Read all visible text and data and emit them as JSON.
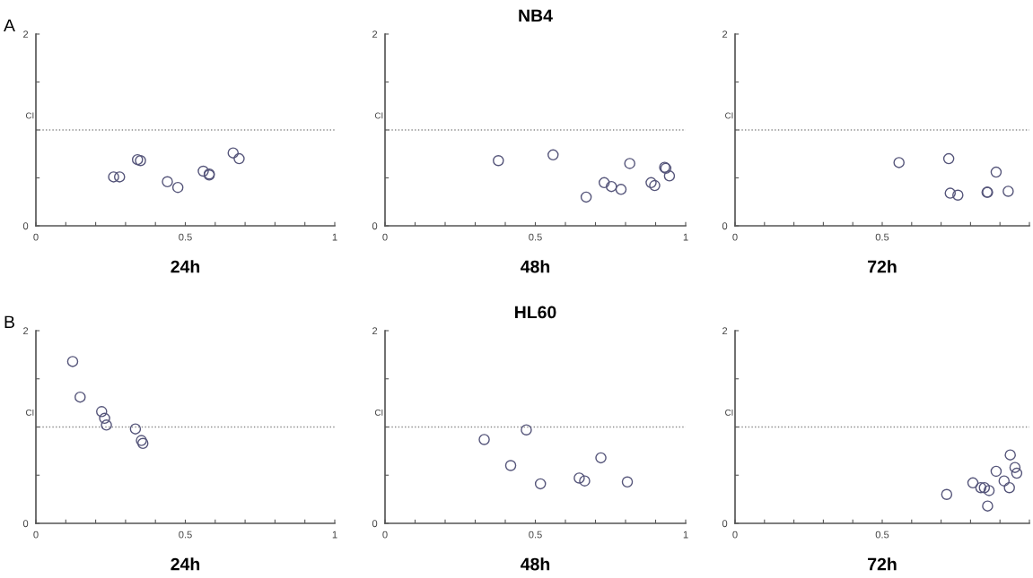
{
  "chart_data": [
    {
      "type": "scatter",
      "annotations": [
        "A"
      ],
      "xlabel": "24h",
      "ylabel": "CI",
      "xlim": [
        0,
        1
      ],
      "ylim": [
        0,
        2
      ],
      "marker": "circle",
      "grid": false,
      "xticks": [
        0,
        {
          "value": 0.1,
          "label": null
        },
        {
          "value": 0.2,
          "label": null
        },
        {
          "value": 0.3,
          "label": null
        },
        {
          "value": 0.4,
          "label": null
        },
        0.5,
        {
          "value": 0.6,
          "label": null
        },
        {
          "value": 0.7,
          "label": null
        },
        {
          "value": 0.8,
          "label": null
        },
        {
          "value": 0.9,
          "label": null
        },
        1
      ],
      "yticks": [
        0,
        {
          "value": 0.5,
          "label": null
        },
        {
          "value": 1,
          "label": null
        },
        {
          "value": 1.5,
          "label": null
        },
        2
      ],
      "ref_lines": [
        {
          "axis": "y",
          "value": 1,
          "color": "#8a8a8a",
          "line_style": "dotted"
        }
      ],
      "series": [
        {
          "color": "#55557a",
          "x": [
            0.26,
            0.28,
            0.34,
            0.35,
            0.44,
            0.475,
            0.56,
            0.58,
            0.58,
            0.66,
            0.68
          ],
          "values": [
            0.51,
            0.51,
            0.69,
            0.68,
            0.46,
            0.4,
            0.57,
            0.54,
            0.53,
            0.76,
            0.7
          ]
        }
      ]
    },
    {
      "type": "scatter",
      "title": "NB4",
      "xlabel": "48h",
      "ylabel": "CI",
      "xlim": [
        0,
        1
      ],
      "ylim": [
        0,
        2
      ],
      "marker": "circle",
      "grid": false,
      "xticks": [
        0,
        {
          "value": 0.1,
          "label": null
        },
        {
          "value": 0.2,
          "label": null
        },
        {
          "value": 0.3,
          "label": null
        },
        {
          "value": 0.4,
          "label": null
        },
        0.5,
        {
          "value": 0.6,
          "label": null
        },
        {
          "value": 0.7,
          "label": null
        },
        {
          "value": 0.8,
          "label": null
        },
        {
          "value": 0.9,
          "label": null
        },
        1
      ],
      "yticks": [
        0,
        {
          "value": 0.5,
          "label": null
        },
        {
          "value": 1,
          "label": null
        },
        {
          "value": 1.5,
          "label": null
        },
        2
      ],
      "ref_lines": [
        {
          "axis": "y",
          "value": 1,
          "color": "#8a8a8a",
          "line_style": "dotted"
        }
      ],
      "series": [
        {
          "color": "#55557a",
          "x": [
            0.377,
            0.559,
            0.669,
            0.729,
            0.753,
            0.785,
            0.814,
            0.885,
            0.897,
            0.93,
            0.934,
            0.946
          ],
          "values": [
            0.68,
            0.74,
            0.3,
            0.45,
            0.41,
            0.38,
            0.65,
            0.45,
            0.42,
            0.61,
            0.6,
            0.52
          ]
        }
      ]
    },
    {
      "type": "scatter",
      "xlabel": "72h",
      "ylabel": "CI",
      "xlim": [
        0,
        1
      ],
      "ylim": [
        0,
        2
      ],
      "marker": "circle",
      "grid": false,
      "xticks": [
        0,
        {
          "value": 0.1,
          "label": null
        },
        {
          "value": 0.2,
          "label": null
        },
        {
          "value": 0.3,
          "label": null
        },
        {
          "value": 0.4,
          "label": null
        },
        0.5,
        {
          "value": 0.6,
          "label": null
        },
        {
          "value": 0.7,
          "label": null
        },
        {
          "value": 0.8,
          "label": null
        },
        {
          "value": 0.9,
          "label": null
        },
        {
          "value": 1,
          "label": null
        }
      ],
      "yticks": [
        0,
        {
          "value": 0.5,
          "label": null
        },
        {
          "value": 1,
          "label": null
        },
        {
          "value": 1.5,
          "label": null
        },
        2
      ],
      "ref_lines": [
        {
          "axis": "y",
          "value": 1,
          "color": "#8a8a8a",
          "line_style": "dotted"
        }
      ],
      "series": [
        {
          "color": "#55557a",
          "x": [
            0.557,
            0.726,
            0.731,
            0.757,
            0.858,
            0.856,
            0.887,
            0.928
          ],
          "values": [
            0.66,
            0.7,
            0.34,
            0.32,
            0.35,
            0.35,
            0.56,
            0.36
          ]
        }
      ]
    },
    {
      "type": "scatter",
      "annotations": [
        "B"
      ],
      "xlabel": "24h",
      "ylabel": "CI",
      "xlim": [
        0,
        1
      ],
      "ylim": [
        0,
        2
      ],
      "marker": "circle",
      "grid": false,
      "xticks": [
        0,
        {
          "value": 0.1,
          "label": null
        },
        {
          "value": 0.2,
          "label": null
        },
        {
          "value": 0.3,
          "label": null
        },
        {
          "value": 0.4,
          "label": null
        },
        0.5,
        {
          "value": 0.6,
          "label": null
        },
        {
          "value": 0.7,
          "label": null
        },
        {
          "value": 0.8,
          "label": null
        },
        {
          "value": 0.9,
          "label": null
        },
        1
      ],
      "yticks": [
        0,
        {
          "value": 0.5,
          "label": null
        },
        {
          "value": 1,
          "label": null
        },
        {
          "value": 1.5,
          "label": null
        },
        2
      ],
      "ref_lines": [
        {
          "axis": "y",
          "value": 1,
          "color": "#8a8a8a",
          "line_style": "dotted"
        }
      ],
      "series": [
        {
          "color": "#55557a",
          "x": [
            0.123,
            0.148,
            0.22,
            0.23,
            0.236,
            0.333,
            0.353,
            0.358
          ],
          "values": [
            1.68,
            1.31,
            1.16,
            1.09,
            1.02,
            0.98,
            0.86,
            0.83
          ]
        }
      ]
    },
    {
      "type": "scatter",
      "title": "HL60",
      "xlabel": "48h",
      "ylabel": "CI",
      "xlim": [
        0,
        1
      ],
      "ylim": [
        0,
        2
      ],
      "marker": "circle",
      "grid": false,
      "xticks": [
        0,
        {
          "value": 0.1,
          "label": null
        },
        {
          "value": 0.2,
          "label": null
        },
        {
          "value": 0.3,
          "label": null
        },
        {
          "value": 0.4,
          "label": null
        },
        0.5,
        {
          "value": 0.6,
          "label": null
        },
        {
          "value": 0.7,
          "label": null
        },
        {
          "value": 0.8,
          "label": null
        },
        {
          "value": 0.9,
          "label": null
        },
        1
      ],
      "yticks": [
        0,
        {
          "value": 0.5,
          "label": null
        },
        {
          "value": 1,
          "label": null
        },
        {
          "value": 1.5,
          "label": null
        },
        2
      ],
      "ref_lines": [
        {
          "axis": "y",
          "value": 1,
          "color": "#8a8a8a",
          "line_style": "dotted"
        }
      ],
      "series": [
        {
          "color": "#55557a",
          "x": [
            0.33,
            0.47,
            0.418,
            0.517,
            0.646,
            0.664,
            0.718,
            0.806
          ],
          "values": [
            0.87,
            0.97,
            0.6,
            0.41,
            0.47,
            0.44,
            0.68,
            0.43
          ]
        }
      ]
    },
    {
      "type": "scatter",
      "xlabel": "72h",
      "ylabel": "CI",
      "xlim": [
        0,
        1
      ],
      "ylim": [
        0,
        2
      ],
      "marker": "circle",
      "grid": false,
      "xticks": [
        0,
        {
          "value": 0.1,
          "label": null
        },
        {
          "value": 0.2,
          "label": null
        },
        {
          "value": 0.3,
          "label": null
        },
        {
          "value": 0.4,
          "label": null
        },
        0.5,
        {
          "value": 0.6,
          "label": null
        },
        {
          "value": 0.7,
          "label": null
        },
        {
          "value": 0.8,
          "label": null
        },
        {
          "value": 0.9,
          "label": null
        },
        {
          "value": 1,
          "label": null
        }
      ],
      "yticks": [
        0,
        {
          "value": 0.5,
          "label": null
        },
        {
          "value": 1,
          "label": null
        },
        {
          "value": 1.5,
          "label": null
        },
        2
      ],
      "ref_lines": [
        {
          "axis": "y",
          "value": 1,
          "color": "#8a8a8a",
          "line_style": "dotted"
        }
      ],
      "series": [
        {
          "color": "#55557a",
          "x": [
            0.719,
            0.808,
            0.835,
            0.847,
            0.863,
            0.858,
            0.887,
            0.914,
            0.932,
            0.935,
            0.951,
            0.957
          ],
          "values": [
            0.3,
            0.42,
            0.37,
            0.37,
            0.34,
            0.18,
            0.54,
            0.44,
            0.37,
            0.71,
            0.58,
            0.52
          ]
        }
      ]
    }
  ]
}
